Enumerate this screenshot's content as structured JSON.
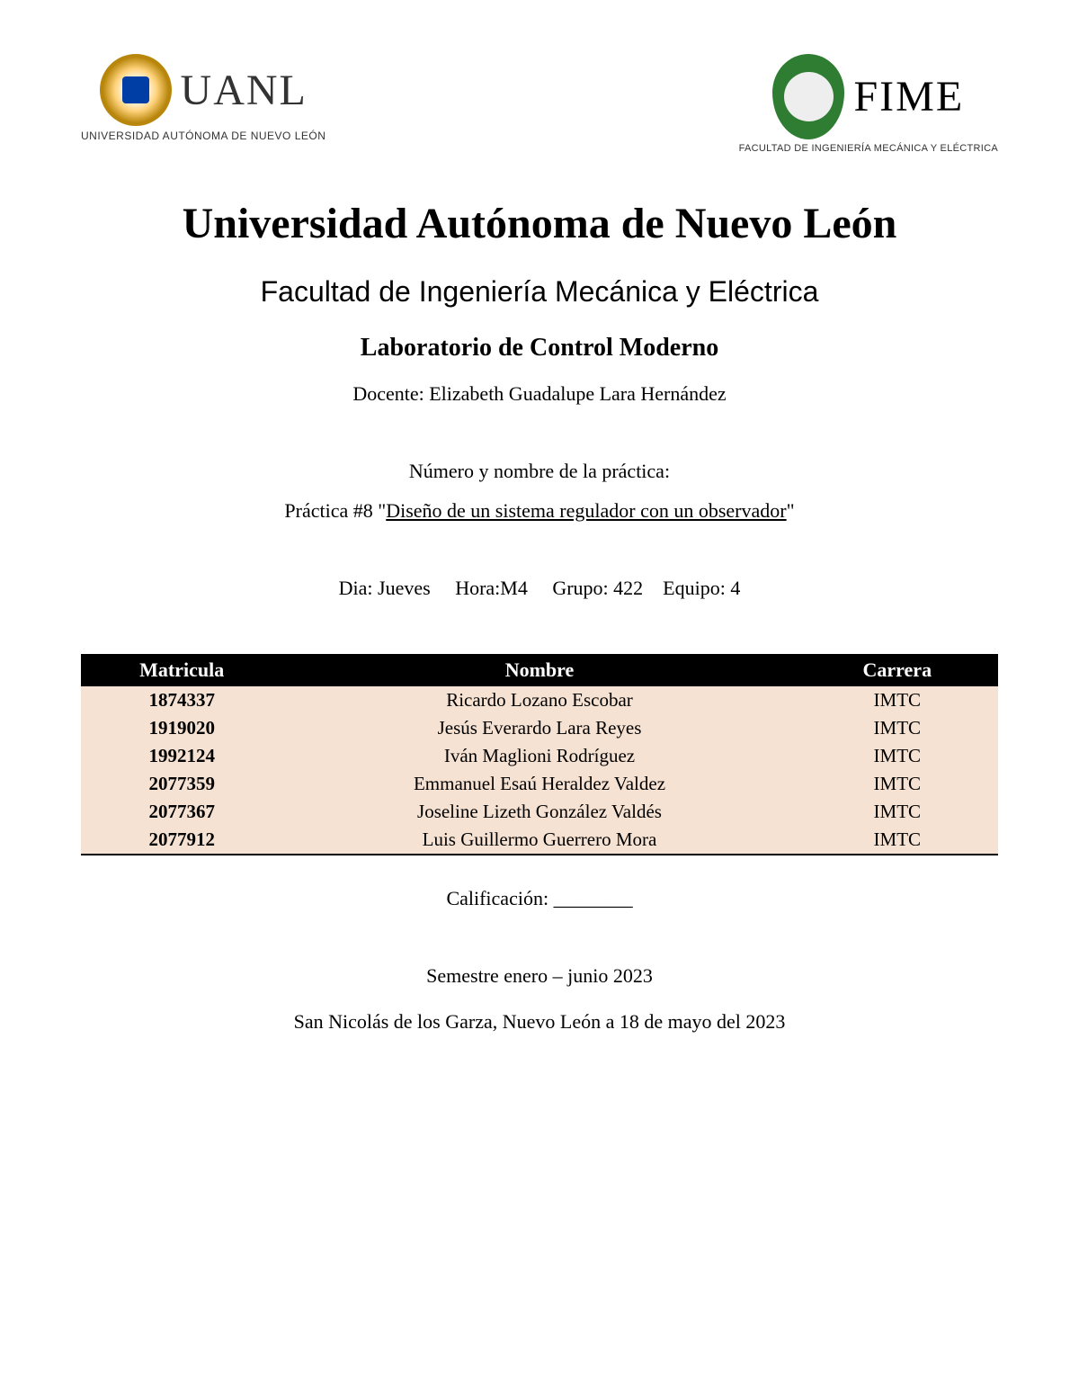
{
  "logos": {
    "uanl_acronym": "UANL",
    "uanl_fullname": "UNIVERSIDAD AUTÓNOMA DE NUEVO LEÓN",
    "fime_acronym": "FIME",
    "fime_fullname": "FACULTAD DE INGENIERÍA MECÁNICA Y ELÉCTRICA"
  },
  "titles": {
    "university": "Universidad Autónoma de Nuevo León",
    "faculty": "Facultad de Ingeniería Mecánica y Eléctrica",
    "laboratory": "Laboratorio de Control Moderno",
    "teacher_prefix": "Docente: ",
    "teacher_name": "Elizabeth Guadalupe Lara Hernández"
  },
  "practice": {
    "label": "Número y nombre de la práctica:",
    "prefix": "Práctica #8 \"",
    "name": "Diseño de un sistema regulador con un observador",
    "suffix": "\""
  },
  "schedule": {
    "day_label": "Dia: ",
    "day": "Jueves",
    "time_label": "Hora:",
    "time": "M4",
    "group_label": "Grupo: ",
    "group": "422",
    "team_label": "Equipo: ",
    "team": "4"
  },
  "table": {
    "headers": {
      "matricula": "Matricula",
      "nombre": "Nombre",
      "carrera": "Carrera"
    },
    "header_bg": "#000000",
    "header_fg": "#ffffff",
    "row_bg": "#f6e2d2",
    "column_widths": [
      "22%",
      "56%",
      "22%"
    ],
    "rows": [
      {
        "matricula": "1874337",
        "nombre": "Ricardo Lozano Escobar",
        "carrera": "IMTC"
      },
      {
        "matricula": "1919020",
        "nombre": "Jesús Everardo Lara Reyes",
        "carrera": "IMTC"
      },
      {
        "matricula": "1992124",
        "nombre": "Iván Maglioni Rodríguez",
        "carrera": "IMTC"
      },
      {
        "matricula": "2077359",
        "nombre": "Emmanuel Esaú Heraldez Valdez",
        "carrera": "IMTC"
      },
      {
        "matricula": "2077367",
        "nombre": "Joseline Lizeth González Valdés",
        "carrera": "IMTC"
      },
      {
        "matricula": "2077912",
        "nombre": "Luis Guillermo Guerrero Mora",
        "carrera": "IMTC"
      }
    ]
  },
  "footer": {
    "grade_label": "Calificación: ",
    "grade_blank": "________",
    "semester": "Semestre enero – junio 2023",
    "location_date": "San Nicolás de los Garza, Nuevo León a 18 de mayo del 2023"
  }
}
